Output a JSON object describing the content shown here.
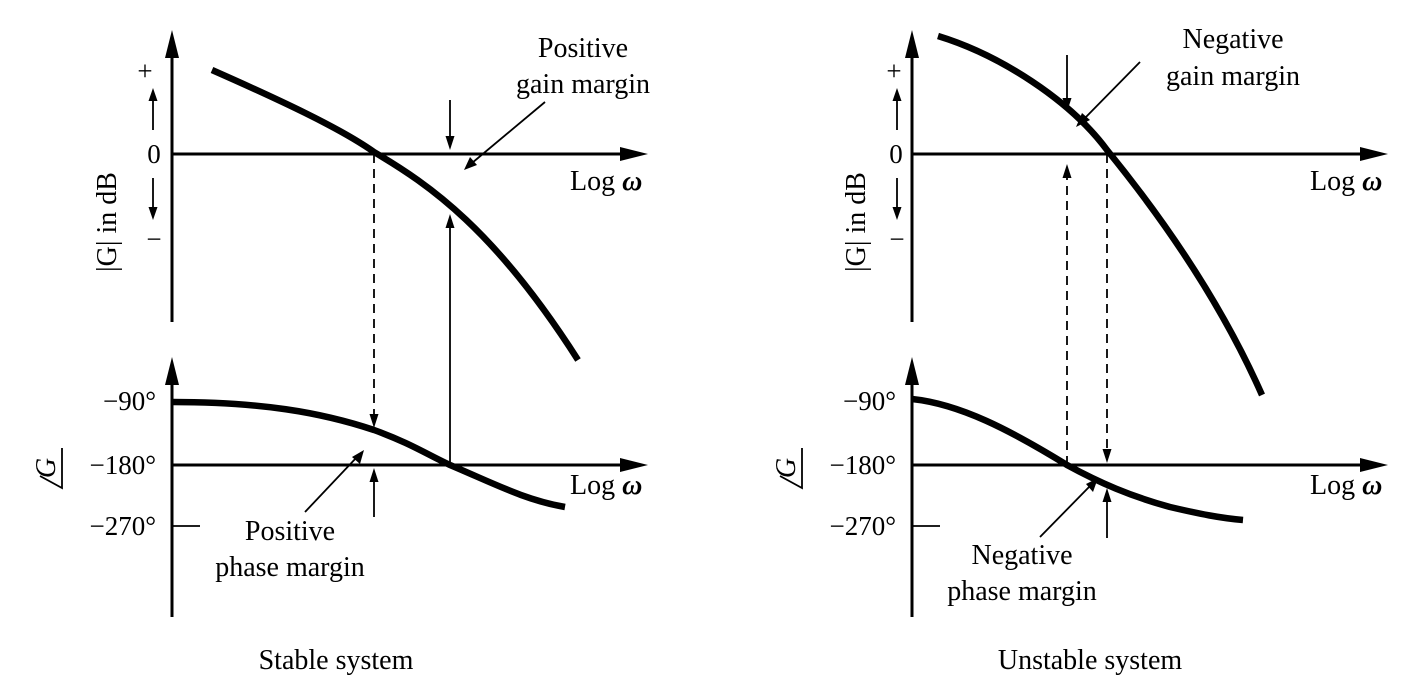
{
  "panels": {
    "stable": {
      "caption": "Stable system",
      "magnitude": {
        "ylabel": "|G| in dB",
        "tick_plus": "+",
        "tick_zero": "0",
        "tick_minus": "−",
        "xlabel": "Log ",
        "xlabel_symbol": "ω",
        "annotation_line1": "Positive",
        "annotation_line2": "gain margin"
      },
      "phase": {
        "ylabel": "G",
        "tick_90": "−90°",
        "tick_180": "−180°",
        "tick_270": "−270°",
        "xlabel": "Log ",
        "xlabel_symbol": "ω",
        "annotation_line1": "Positive",
        "annotation_line2": "phase margin"
      }
    },
    "unstable": {
      "caption": "Unstable system",
      "magnitude": {
        "ylabel": "|G| in dB",
        "tick_plus": "+",
        "tick_zero": "0",
        "tick_minus": "−",
        "xlabel": "Log ",
        "xlabel_symbol": "ω",
        "annotation_line1": "Negative",
        "annotation_line2": "gain margin"
      },
      "phase": {
        "ylabel": "G",
        "tick_90": "−90°",
        "tick_180": "−180°",
        "tick_270": "−270°",
        "xlabel": "Log ",
        "xlabel_symbol": "ω",
        "annotation_line1": "Negative",
        "annotation_line2": "phase margin"
      }
    }
  }
}
